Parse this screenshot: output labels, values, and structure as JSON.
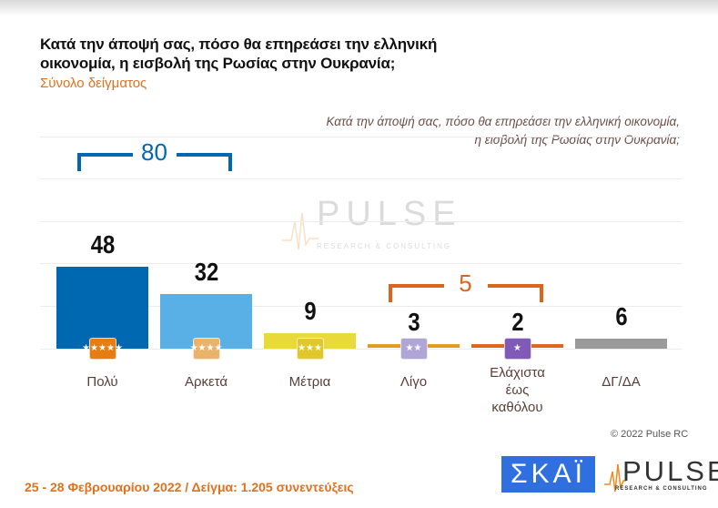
{
  "header": {
    "title_line1": "Κατά την άποψή σας, πόσο θα επηρεάσει την ελληνική",
    "title_line2": "οικονομία, η εισβολή της Ρωσίας στην Ουκρανία;",
    "subtitle": "Σύνολο δείγματος"
  },
  "question": {
    "line1": "Κατά την άποψή σας, πόσο θα επηρεάσει την ελληνική οικονομία,",
    "line2": "η εισβολή της Ρωσίας στην Ουκρανία;"
  },
  "watermark": {
    "word": "PULSE",
    "sub": "RESEARCH & CONSULTING"
  },
  "chart_data": {
    "type": "bar",
    "title": "Κατά την άποψή σας, πόσο θα επηρεάσει την ελληνική οικονομία, η εισβολή της Ρωσίας στην Ουκρανία;",
    "categories": [
      "Πολύ",
      "Αρκετά",
      "Μέτρια",
      "Λίγο",
      "Ελάχιστα έως καθόλου",
      "ΔΓ/ΔΑ"
    ],
    "category_lines": [
      [
        "Πολύ"
      ],
      [
        "Αρκετά"
      ],
      [
        "Μέτρια"
      ],
      [
        "Λίγο"
      ],
      [
        "Ελάχιστα",
        "έως",
        "καθόλου"
      ],
      [
        "ΔΓ/ΔΑ"
      ]
    ],
    "values": [
      48,
      32,
      9,
      3,
      2,
      6
    ],
    "value_labels": [
      "48",
      "32",
      "9",
      "3",
      "2",
      "6"
    ],
    "colors": [
      "#0068b0",
      "#58b0e6",
      "#e9da3a",
      "#e39b20",
      "#e0661e",
      "#9a9a9a"
    ],
    "bar_styles": [
      "bar",
      "bar",
      "bar",
      "line",
      "line",
      "bar"
    ],
    "badges": [
      {
        "stars": 5,
        "color": "#e57d12"
      },
      {
        "stars": 4,
        "color": "#e9b36b"
      },
      {
        "stars": 3,
        "color": "#e0c72c"
      },
      {
        "stars": 2,
        "color": "#b0a6d6"
      },
      {
        "stars": 1,
        "color": "#7f5ab6"
      },
      null
    ],
    "groups": [
      {
        "label": "80",
        "from": 0,
        "to": 1,
        "color": "#0068b0"
      },
      {
        "label": "5",
        "from": 3,
        "to": 4,
        "color": "#d9661c"
      }
    ],
    "ylim": [
      0,
      60
    ],
    "xlabel": "",
    "ylabel": "",
    "grid": true,
    "legend": "none"
  },
  "footer": {
    "copyright": "© 2022 Pulse RC",
    "date_sample": "25 - 28  Φεβρουαρίου  2022  /  Δείγμα:  1.205 συνεντεύξεις",
    "skai_logo": "ΣΚΑΪ",
    "pulse_logo": "PULSE",
    "pulse_logo_sub": "RESEARCH & CONSULTING"
  }
}
